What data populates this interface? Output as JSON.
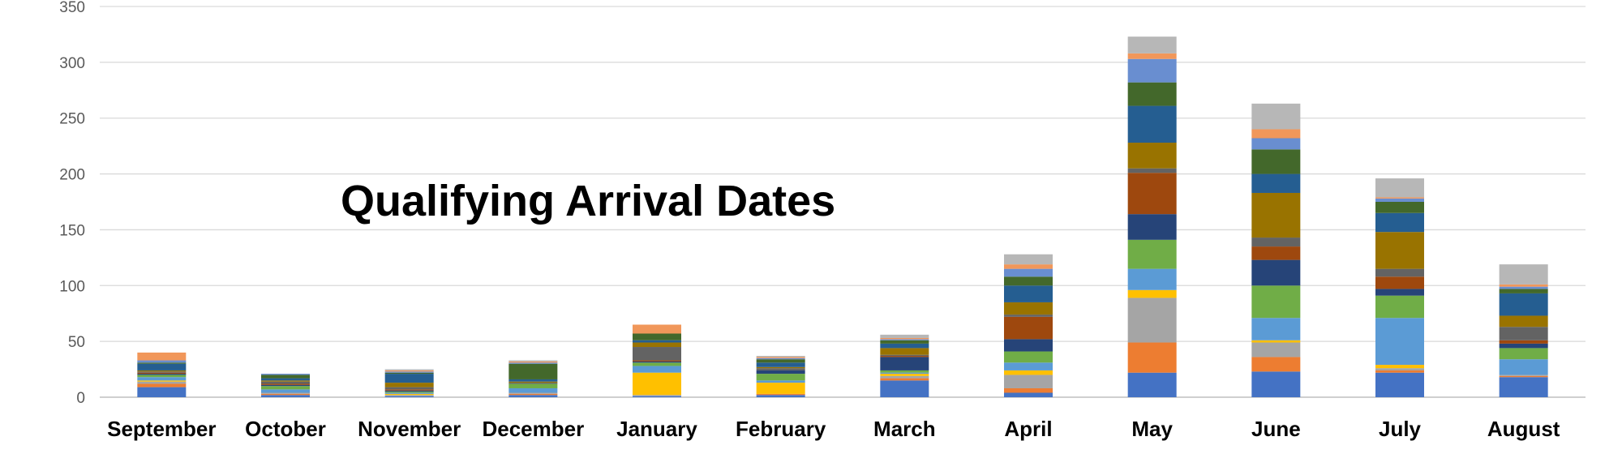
{
  "chart_data": {
    "type": "bar",
    "stacked": true,
    "title": "Qualifying Arrival Dates",
    "categories": [
      "September",
      "October",
      "November",
      "December",
      "January",
      "February",
      "March",
      "April",
      "May",
      "June",
      "July",
      "August"
    ],
    "ylim": [
      0,
      350
    ],
    "yticks": [
      0,
      50,
      100,
      150,
      200,
      250,
      300,
      350
    ],
    "grid": true,
    "legend": "none",
    "palette": [
      "#4472C4",
      "#ED7D31",
      "#A5A5A5",
      "#FFC000",
      "#5B9BD5",
      "#70AD47",
      "#264478",
      "#9E480E",
      "#636363",
      "#997300",
      "#255E91",
      "#43682B",
      "#698ED0",
      "#F1975A",
      "#B7B7B7"
    ],
    "series": [
      {
        "values": [
          9,
          2,
          1,
          2,
          1,
          2,
          15,
          4,
          22,
          23,
          22,
          18
        ]
      },
      {
        "values": [
          3,
          1,
          0,
          1,
          0,
          1,
          2,
          4,
          27,
          13,
          2,
          1
        ]
      },
      {
        "values": [
          2,
          1,
          1,
          1,
          1,
          0,
          2,
          12,
          40,
          13,
          2,
          1
        ]
      },
      {
        "values": [
          1,
          0,
          1,
          0,
          20,
          10,
          2,
          4,
          7,
          2,
          3,
          0
        ]
      },
      {
        "values": [
          3,
          3,
          1,
          4,
          6,
          2,
          1,
          7,
          19,
          20,
          42,
          14
        ]
      },
      {
        "values": [
          2,
          3,
          1,
          4,
          3,
          6,
          2,
          10,
          26,
          29,
          20,
          10
        ]
      },
      {
        "values": [
          1,
          1,
          1,
          0,
          1,
          3,
          12,
          11,
          23,
          23,
          6,
          4
        ]
      },
      {
        "values": [
          1,
          1,
          1,
          0,
          1,
          0,
          1,
          20,
          37,
          12,
          11,
          3
        ]
      },
      {
        "values": [
          1,
          2,
          2,
          1,
          12,
          2,
          1,
          2,
          4,
          8,
          7,
          12
        ]
      },
      {
        "values": [
          1,
          1,
          4,
          1,
          4,
          1,
          6,
          11,
          23,
          40,
          33,
          10
        ]
      },
      {
        "values": [
          6,
          2,
          8,
          2,
          2,
          4,
          4,
          15,
          33,
          17,
          17,
          20
        ]
      },
      {
        "values": [
          1,
          3,
          1,
          14,
          6,
          3,
          3,
          8,
          21,
          22,
          10,
          4
        ]
      },
      {
        "values": [
          2,
          1,
          1,
          1,
          0,
          1,
          1,
          7,
          21,
          10,
          3,
          2
        ]
      },
      {
        "values": [
          7,
          0,
          1,
          1,
          8,
          1,
          1,
          4,
          5,
          8,
          1,
          2
        ]
      },
      {
        "values": [
          0,
          0,
          1,
          1,
          0,
          1,
          3,
          9,
          15,
          23,
          17,
          18
        ]
      }
    ]
  }
}
